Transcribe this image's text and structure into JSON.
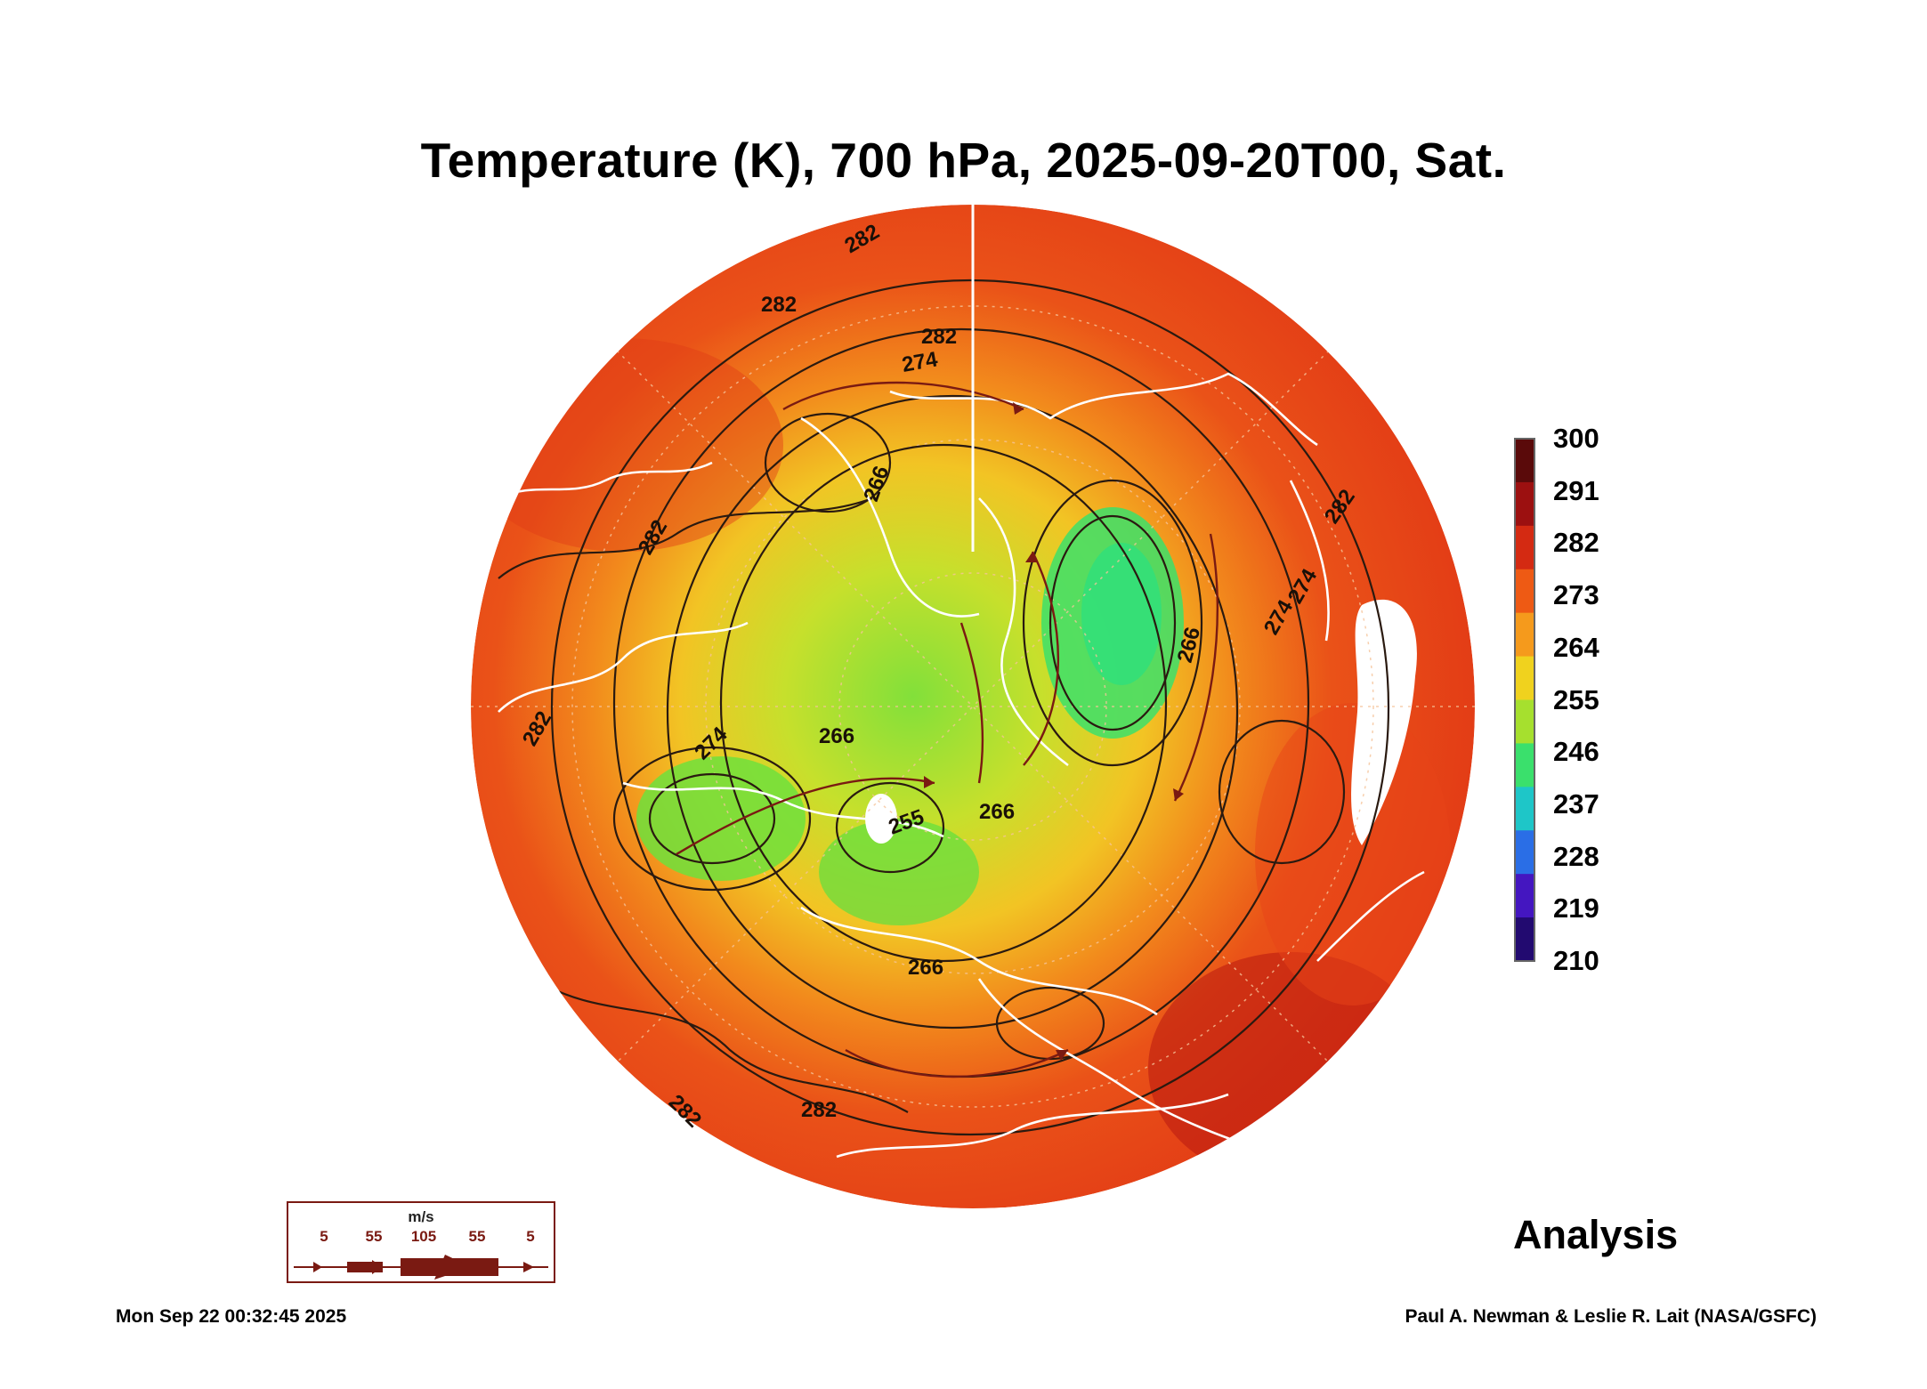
{
  "title": "Temperature (K), 700 hPa, 2025-09-20T00, Sat.",
  "colorbar": {
    "labels": [
      "300",
      "291",
      "282",
      "273",
      "264",
      "255",
      "246",
      "237",
      "228",
      "219",
      "210"
    ],
    "colors": [
      "#5a0a0a",
      "#9c1010",
      "#d42a12",
      "#ee5a14",
      "#f59a1c",
      "#f0d21e",
      "#a6e02e",
      "#3ae06c",
      "#1ec6c8",
      "#2a6ee6",
      "#4416c0",
      "#220a70"
    ]
  },
  "contour_labels": [
    "282",
    "282",
    "282",
    "274",
    "266",
    "282",
    "266",
    "274",
    "266",
    "274",
    "255",
    "266",
    "282",
    "282",
    "282",
    "274",
    "266",
    "282"
  ],
  "wind_legend": {
    "unit": "m/s",
    "values": [
      "5",
      "55",
      "105",
      "55",
      "5"
    ]
  },
  "analysis_label": "Analysis",
  "timestamp": "Mon Sep 22 00:32:45 2025",
  "credit": "Paul A. Newman & Leslie R. Lait (NASA/GSFC)",
  "colors": {
    "ocean_red": "#e8431a",
    "warm_orange": "#f0701c",
    "yellow": "#f2b824",
    "green": "#58e048",
    "dark_red": "#b81810",
    "contour": "#2a1a10",
    "wind_arrow": "#7a1a12",
    "coast": "#ffffff"
  }
}
